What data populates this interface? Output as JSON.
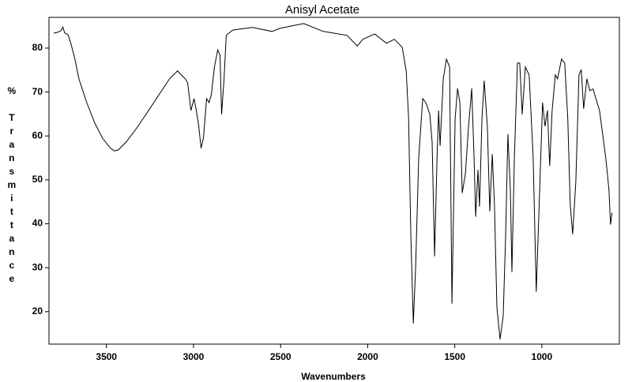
{
  "chart_data": {
    "type": "line",
    "title": "Anisyl Acetate",
    "x_label": "Wavenumbers",
    "y_label": "% Transmittance",
    "x": [
      3803,
      3780,
      3760,
      3750,
      3740,
      3720,
      3704,
      3681,
      3658,
      3613,
      3568,
      3523,
      3477,
      3455,
      3432,
      3387,
      3319,
      3251,
      3183,
      3138,
      3092,
      3070,
      3047,
      3034,
      3015,
      2997,
      2984,
      2970,
      2957,
      2943,
      2925,
      2911,
      2898,
      2880,
      2861,
      2848,
      2839,
      2825,
      2812,
      2775,
      2662,
      2549,
      2504,
      2368,
      2255,
      2119,
      2060,
      2028,
      1960,
      1892,
      1847,
      1802,
      1779,
      1765,
      1752,
      1738,
      1725,
      1707,
      1684,
      1666,
      1643,
      1630,
      1616,
      1602,
      1593,
      1584,
      1566,
      1548,
      1530,
      1516,
      1498,
      1484,
      1471,
      1457,
      1439,
      1421,
      1403,
      1389,
      1380,
      1367,
      1358,
      1344,
      1331,
      1313,
      1299,
      1285,
      1272,
      1258,
      1240,
      1222,
      1208,
      1195,
      1181,
      1172,
      1158,
      1140,
      1127,
      1113,
      1095,
      1073,
      1050,
      1032,
      1014,
      996,
      982,
      968,
      955,
      941,
      923,
      910,
      887,
      869,
      851,
      837,
      823,
      805,
      787,
      774,
      760,
      742,
      724,
      706,
      669,
      633,
      615,
      606,
      597
    ],
    "values": [
      83.4,
      83.6,
      84.0,
      84.8,
      83.5,
      83.0,
      81.0,
      77.5,
      73.0,
      67.6,
      63.0,
      59.5,
      57.2,
      56.6,
      56.8,
      58.6,
      62.2,
      66.2,
      70.3,
      73.0,
      74.8,
      73.9,
      73.0,
      72.1,
      65.8,
      68.5,
      65.8,
      62.2,
      57.2,
      59.5,
      68.5,
      67.6,
      69.4,
      75.7,
      79.6,
      78.4,
      64.9,
      73.0,
      82.9,
      84.1,
      84.7,
      83.8,
      84.5,
      85.6,
      83.8,
      82.9,
      80.5,
      82.0,
      83.2,
      81.1,
      82.0,
      80.2,
      74.8,
      64.0,
      37.0,
      17.3,
      30.0,
      55.0,
      68.5,
      67.6,
      64.9,
      58.6,
      32.6,
      55.0,
      65.8,
      57.7,
      73.0,
      77.5,
      75.7,
      21.8,
      64.0,
      70.8,
      67.6,
      47.0,
      51.4,
      62.2,
      70.8,
      55.0,
      41.6,
      52.3,
      43.9,
      64.0,
      72.6,
      62.2,
      42.8,
      55.9,
      44.3,
      20.9,
      13.7,
      19.1,
      37.0,
      60.4,
      47.9,
      29.0,
      55.0,
      76.6,
      76.6,
      64.9,
      75.7,
      73.9,
      55.0,
      24.5,
      46.0,
      67.6,
      62.2,
      65.8,
      53.2,
      65.8,
      73.9,
      73.0,
      77.5,
      76.6,
      64.0,
      44.3,
      37.6,
      49.6,
      73.9,
      75.1,
      66.2,
      73.0,
      70.3,
      70.7,
      65.8,
      55.0,
      47.8,
      39.8,
      42.5
    ],
    "color": "#000000",
    "xlim": [
      3830,
      555
    ],
    "xticks": [
      3500,
      3000,
      2500,
      2000,
      1500,
      1000
    ],
    "ylim": [
      12.6,
      87
    ],
    "yticks": [
      20,
      30,
      40,
      50,
      60,
      70,
      80
    ],
    "grid": false
  }
}
